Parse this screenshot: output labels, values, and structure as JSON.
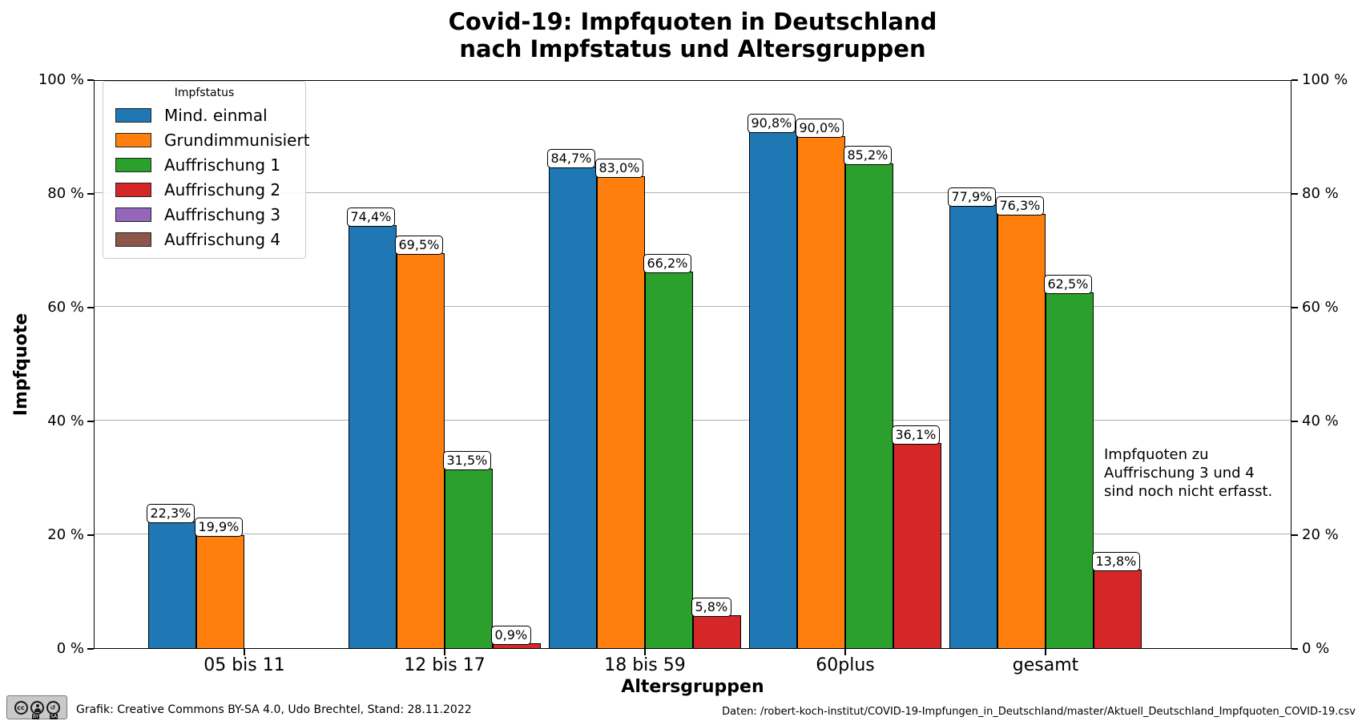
{
  "title": "Covid-19: Impfquoten in Deutschland\nnach Impfstatus und Altersgruppen",
  "chart_data": {
    "type": "bar",
    "title": "Covid-19: Impfquoten in Deutschland nach Impfstatus und Altersgruppen",
    "xlabel": "Altersgruppen",
    "ylabel": "Impfquote",
    "ylim": [
      0,
      100
    ],
    "grid": true,
    "legend_position": "upper left",
    "legend_title": "Impfstatus",
    "ytick_values": [
      0,
      20,
      40,
      60,
      80,
      100
    ],
    "ytick_labels": [
      "0 %",
      "20 %",
      "40 %",
      "60 %",
      "80 %",
      "100 %"
    ],
    "categories": [
      "05 bis 11",
      "12 bis 17",
      "18 bis 59",
      "60plus",
      "gesamt"
    ],
    "series": [
      {
        "name": "Mind. einmal",
        "color": "#1f77b4",
        "values": [
          22.3,
          74.4,
          84.7,
          90.8,
          77.9
        ],
        "labels": [
          "22,3%",
          "74,4%",
          "84,7%",
          "90,8%",
          "77,9%"
        ]
      },
      {
        "name": "Grundimmunisiert",
        "color": "#ff7f0e",
        "values": [
          19.9,
          69.5,
          83.0,
          90.0,
          76.3
        ],
        "labels": [
          "19,9%",
          "69,5%",
          "83,0%",
          "90,0%",
          "76,3%"
        ]
      },
      {
        "name": "Auffrischung 1",
        "color": "#2ca02c",
        "values": [
          null,
          31.5,
          66.2,
          85.2,
          62.5
        ],
        "labels": [
          null,
          "31,5%",
          "66,2%",
          "85,2%",
          "62,5%"
        ]
      },
      {
        "name": "Auffrischung 2",
        "color": "#d62728",
        "values": [
          null,
          0.9,
          5.8,
          36.1,
          13.8
        ],
        "labels": [
          null,
          "0,9%",
          "5,8%",
          "36,1%",
          "13,8%"
        ]
      },
      {
        "name": "Auffrischung 3",
        "color": "#9467bd",
        "values": [
          null,
          null,
          null,
          null,
          null
        ],
        "labels": [
          null,
          null,
          null,
          null,
          null
        ]
      },
      {
        "name": "Auffrischung 4",
        "color": "#8c564b",
        "values": [
          null,
          null,
          null,
          null,
          null
        ],
        "labels": [
          null,
          null,
          null,
          null,
          null
        ]
      }
    ],
    "annotation": "Impfquoten zu\nAuffrischung 3 und 4\nsind noch nicht erfasst."
  },
  "footer": {
    "badge": {
      "cc_text": "cc",
      "label_by": "BY",
      "label_sa": "SA"
    },
    "left_text": "Grafik: Creative Commons BY-SA 4.0, Udo Brechtel, Stand: 28.11.2022",
    "right_text": "Daten: /robert-koch-institut/COVID-19-Impfungen_in_Deutschland/master/Aktuell_Deutschland_Impfquoten_COVID-19.csv"
  }
}
